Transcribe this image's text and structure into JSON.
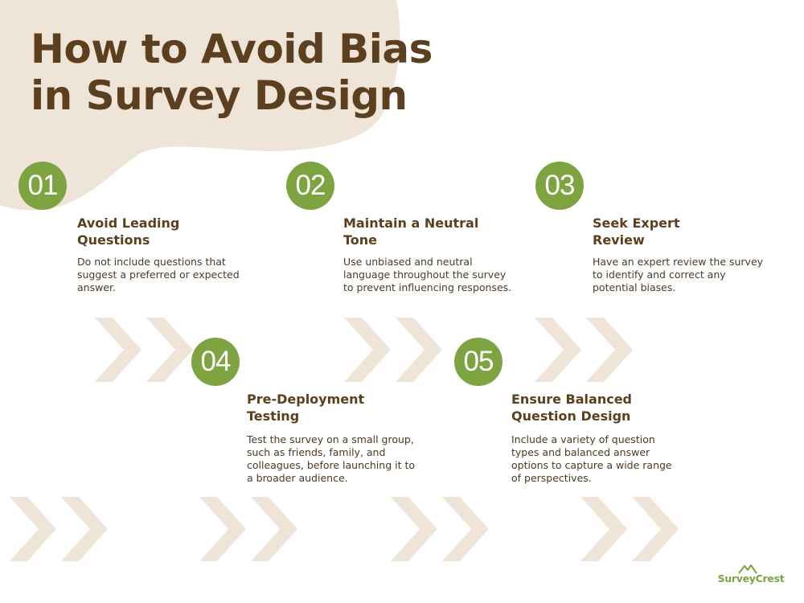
{
  "title": {
    "line1": "How to Avoid Bias",
    "line2": "in Survey Design"
  },
  "colors": {
    "title": "#5c3f1e",
    "badge": "#7ea441",
    "blob": "#efe4d8",
    "chevron": "#efe4d8",
    "brand": "#7ea441"
  },
  "steps": [
    {
      "number": "01",
      "title_lines": [
        "Avoid Leading",
        "Questions"
      ],
      "desc_lines": [
        "Do not include questions that",
        "suggest a preferred or expected",
        "answer."
      ]
    },
    {
      "number": "02",
      "title_lines": [
        "Maintain a Neutral",
        "Tone"
      ],
      "desc_lines": [
        "Use unbiased and neutral",
        "language throughout the survey",
        "to prevent influencing responses."
      ]
    },
    {
      "number": "03",
      "title_lines": [
        "Seek Expert",
        "Review"
      ],
      "desc_lines": [
        "Have an expert review the survey",
        "to identify and correct any",
        "potential biases."
      ]
    },
    {
      "number": "04",
      "title_lines": [
        "Pre-Deployment",
        "Testing"
      ],
      "desc_lines": [
        "Test the survey on a small group,",
        "such as friends, family, and",
        "colleagues, before launching it to",
        "a broader audience."
      ]
    },
    {
      "number": "05",
      "title_lines": [
        "Ensure Balanced",
        "Question Design"
      ],
      "desc_lines": [
        "Include a variety of question",
        "types and balanced answer",
        "options to capture a wide range",
        "of perspectives."
      ]
    }
  ],
  "logo": {
    "text": "SurveyCrest",
    "icon": "mountain-icon"
  }
}
